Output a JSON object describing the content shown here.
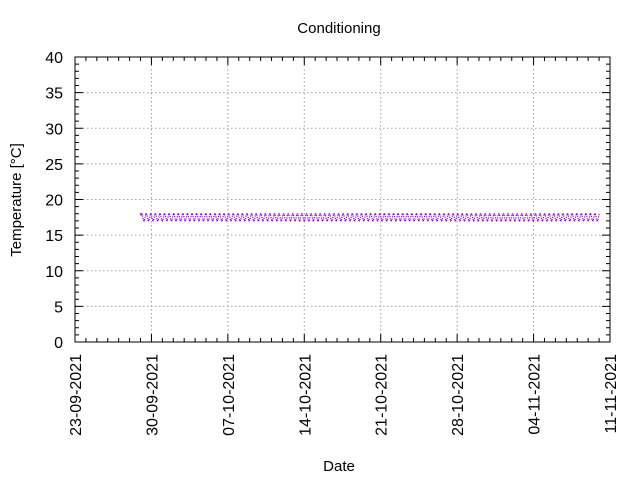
{
  "chart_data": {
    "type": "scatter",
    "title": "Conditioning",
    "xlabel": "Date",
    "ylabel": "Temperature [°C]",
    "ylim": [
      0,
      40
    ],
    "yticks": [
      "0",
      "5",
      "10",
      "15",
      "20",
      "25",
      "30",
      "35",
      "40"
    ],
    "xlim": [
      "2021-09-23",
      "2021-11-11"
    ],
    "xticks": [
      {
        "date": "2021-09-23",
        "label": "23-09-2021"
      },
      {
        "date": "2021-09-30",
        "label": "30-09-2021"
      },
      {
        "date": "2021-10-07",
        "label": "07-10-2021"
      },
      {
        "date": "2021-10-14",
        "label": "14-10-2021"
      },
      {
        "date": "2021-10-21",
        "label": "21-10-2021"
      },
      {
        "date": "2021-10-28",
        "label": "28-10-2021"
      },
      {
        "date": "2021-11-04",
        "label": "04-11-2021"
      },
      {
        "date": "2021-11-11",
        "label": "11-11-2021"
      }
    ],
    "grid": true,
    "legend": "none",
    "series": [
      {
        "color": "#9400d3",
        "x_range": [
          "2021-09-29",
          "2021-11-10"
        ],
        "y_range": [
          17.0,
          18.0
        ],
        "first_value": 18.0,
        "typical_value": 17.5
      }
    ]
  }
}
